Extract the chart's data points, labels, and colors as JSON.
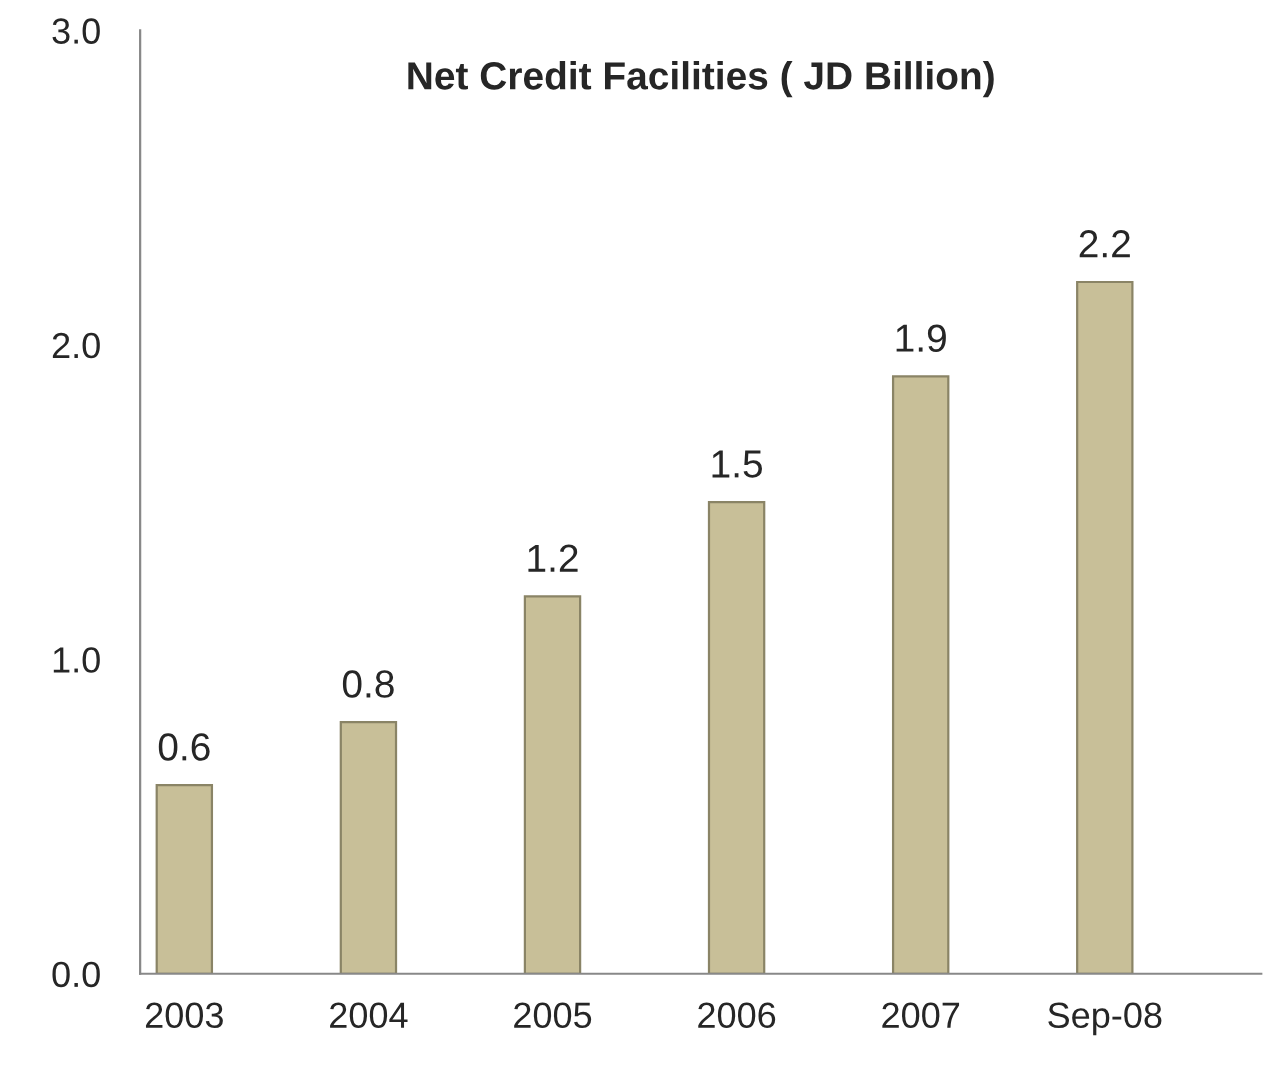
{
  "chart_data": {
    "type": "bar",
    "title": "Net Credit Facilities ( JD Billion)",
    "categories": [
      "2003",
      "2004",
      "2005",
      "2006",
      "2007",
      "Sep-08"
    ],
    "values": [
      0.6,
      0.8,
      1.2,
      1.5,
      1.9,
      2.2
    ],
    "color": "#c8bf98",
    "ylim": [
      0,
      3
    ],
    "yticks": [
      {
        "value": 0,
        "label": "0.0"
      },
      {
        "value": 1,
        "label": "1.0"
      },
      {
        "value": 2,
        "label": "2.0"
      },
      {
        "value": 3,
        "label": "3.0"
      }
    ],
    "data_labels": true,
    "grid": false,
    "legend": false
  }
}
